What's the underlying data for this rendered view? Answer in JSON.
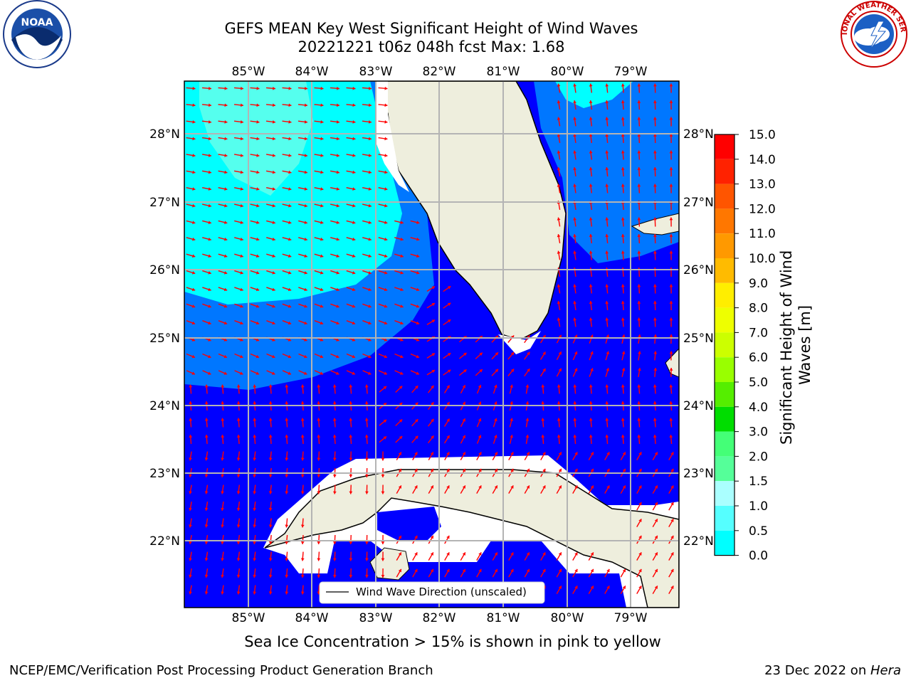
{
  "title": {
    "line1": "GEFS MEAN Key West Significant Height of Wind Waves",
    "line2": "20221221 t06z 048h fcst   Max: 1.68"
  },
  "map": {
    "lon_ticks": [
      "85°W",
      "84°W",
      "83°W",
      "82°W",
      "81°W",
      "80°W",
      "79°W"
    ],
    "lat_ticks": [
      "28°N",
      "27°N",
      "26°N",
      "25°N",
      "24°N",
      "23°N",
      "22°N"
    ],
    "legend_label": "Wind Wave Direction (unscaled)",
    "colors": {
      "land": "#eeeedd",
      "no_data": "#ffffff",
      "band_0_0.5": "#0000ff",
      "band_0.5_1.0": "#0077ff",
      "band_1.0_1.5": "#00ffff",
      "band_1.5_2.0": "#55ffee",
      "arrow": "#ff0000"
    }
  },
  "colorbar": {
    "label": "Significant Height of Wind Waves [m]",
    "ticks": [
      "15.0",
      "14.0",
      "13.0",
      "12.0",
      "11.0",
      "10.0",
      "9.0",
      "8.0",
      "7.0",
      "6.0",
      "5.0",
      "4.0",
      "3.0",
      "2.0",
      "1.5",
      "1.0",
      "0.5",
      "0.0"
    ],
    "band_colors": [
      "#ff0000",
      "#ff2200",
      "#ff5500",
      "#ff7700",
      "#ff9900",
      "#ffbb00",
      "#ffee00",
      "#eeff00",
      "#ccff00",
      "#99ff00",
      "#55ee00",
      "#00dd00",
      "#44ff77",
      "#55ff99",
      "#aaffff",
      "#55ffff",
      "#00ffff",
      "#0077ff",
      "#0000ff"
    ]
  },
  "caption": "Sea Ice Concentration > 15% is shown in pink to yellow",
  "footer": {
    "left": "NCEP/EMC/Verification Post Processing Product Generation Branch",
    "right_date": "23 Dec 2022 on ",
    "right_host": "Hera"
  },
  "logos": {
    "noaa_text": "NOAA",
    "nws_text": "NATIONAL WEATHER SERVICE"
  }
}
